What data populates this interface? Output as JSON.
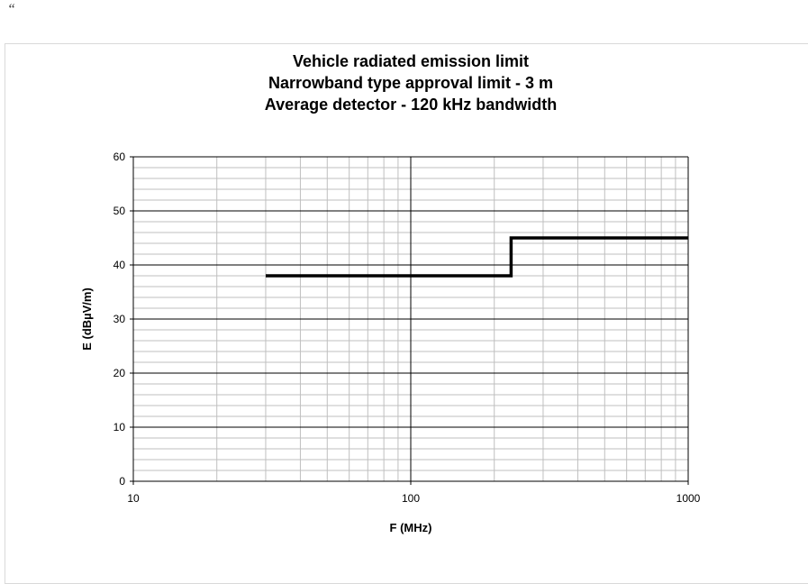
{
  "page": {
    "mark": "“"
  },
  "chart_data": {
    "type": "line",
    "title_lines": [
      "Vehicle radiated emission limit",
      "Narrowband type approval limit - 3 m",
      "Average detector - 120 kHz bandwidth"
    ],
    "xlabel": "F (MHz)",
    "ylabel": "E (dBµV/m)",
    "xscale": "log",
    "xlim": [
      10,
      1000
    ],
    "ylim": [
      0,
      60
    ],
    "x_ticks": [
      10,
      100,
      1000
    ],
    "y_ticks": [
      0,
      10,
      20,
      30,
      40,
      50,
      60
    ],
    "grid": true,
    "legend": "none",
    "series": [
      {
        "color": "#000000",
        "points": [
          [
            30,
            38
          ],
          [
            230,
            38
          ],
          [
            230,
            45
          ],
          [
            1000,
            45
          ]
        ]
      }
    ]
  }
}
